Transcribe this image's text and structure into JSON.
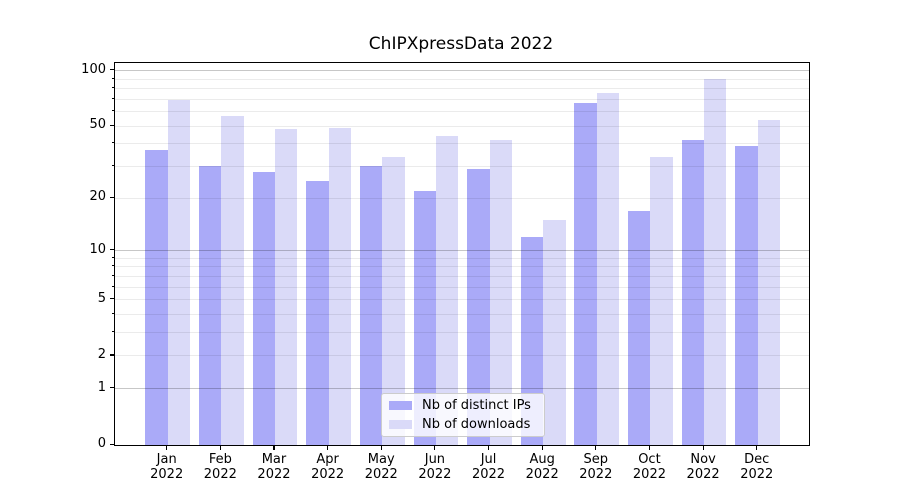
{
  "title": "ChIPXpressData 2022",
  "chart_data": {
    "type": "bar",
    "title": "ChIPXpressData 2022",
    "categories": [
      "Jan",
      "Feb",
      "Mar",
      "Apr",
      "May",
      "Jun",
      "Jul",
      "Aug",
      "Sep",
      "Oct",
      "Nov",
      "Dec"
    ],
    "x_year": "2022",
    "series": [
      {
        "name": "Nb of distinct IPs",
        "color": "#aaaaf8",
        "values": [
          37,
          30,
          28,
          25,
          30,
          22,
          29,
          12,
          67,
          17,
          42,
          39
        ]
      },
      {
        "name": "Nb of downloads",
        "color": "#dadaf8",
        "values": [
          69,
          57,
          48,
          49,
          34,
          44,
          42,
          15,
          76,
          34,
          90,
          54
        ]
      }
    ],
    "yscale": "log1p",
    "ylim": [
      0,
      110
    ],
    "y_tick_labels": [
      "100",
      "50",
      "20",
      "10",
      "5",
      "2",
      "1",
      "0"
    ],
    "y_tick_values": [
      100,
      50,
      20,
      10,
      5,
      2,
      1,
      0
    ],
    "decade_gridlines": [
      1,
      10,
      100
    ],
    "minor_gridlines": [
      2,
      3,
      4,
      5,
      6,
      7,
      8,
      9,
      20,
      30,
      40,
      50,
      60,
      70,
      80,
      90
    ],
    "grid": true,
    "legend_position": "lower center inside plot"
  },
  "colors": {
    "bar_ips": "#aaaaf8",
    "bar_downloads": "#dadaf8",
    "grid_major": "rgba(0,0,0,0.22)",
    "grid_minor": "rgba(0,0,0,0.08)",
    "axis": "#000000",
    "legend_border": "#cccccc",
    "background": "#ffffff"
  }
}
